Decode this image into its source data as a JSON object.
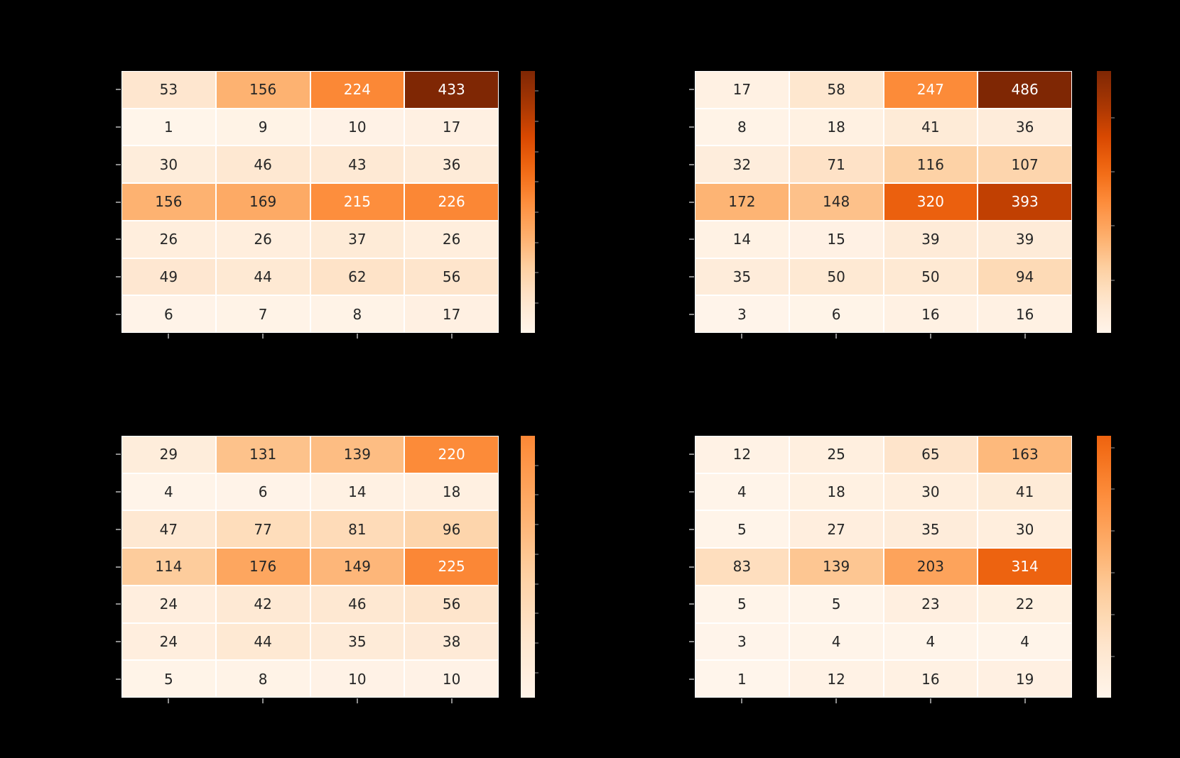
{
  "background": "#000000",
  "colormap": {
    "name": "Oranges",
    "stops": [
      "#fff5eb",
      "#fee6ce",
      "#fdd0a2",
      "#fdae6b",
      "#fd8d3c",
      "#f16913",
      "#d94801",
      "#a63603",
      "#7f2704"
    ]
  },
  "annotation_colors": {
    "dark": "#262626",
    "light": "#ffffff"
  },
  "gridline_color": "#ffffff",
  "axis_tick_color": "#8c8c8c",
  "colorbar_tick_color": "#4d4d4d",
  "white_text_threshold": 0.45,
  "chart_data": [
    {
      "type": "heatmap",
      "panel": "top-left",
      "rows": 7,
      "cols": 4,
      "values": [
        [
          53,
          156,
          224,
          433
        ],
        [
          1,
          9,
          10,
          17
        ],
        [
          30,
          46,
          43,
          36
        ],
        [
          156,
          169,
          215,
          226
        ],
        [
          26,
          26,
          37,
          26
        ],
        [
          49,
          44,
          62,
          56
        ],
        [
          6,
          7,
          8,
          17
        ]
      ],
      "color_vmax": 433,
      "colorbar": {
        "min": 1,
        "max": 433,
        "ticks": [
          50,
          100,
          150,
          200,
          250,
          300,
          350,
          400
        ]
      },
      "grid": true,
      "legend_position": "right"
    },
    {
      "type": "heatmap",
      "panel": "top-right",
      "rows": 7,
      "cols": 4,
      "values": [
        [
          17,
          58,
          247,
          486
        ],
        [
          8,
          18,
          41,
          36
        ],
        [
          32,
          71,
          116,
          107
        ],
        [
          172,
          148,
          320,
          393
        ],
        [
          14,
          15,
          39,
          39
        ],
        [
          35,
          50,
          50,
          94
        ],
        [
          3,
          6,
          16,
          16
        ]
      ],
      "color_vmax": 486,
      "colorbar": {
        "min": 3,
        "max": 486,
        "ticks": [
          100,
          200,
          300,
          400
        ]
      },
      "grid": true,
      "legend_position": "right"
    },
    {
      "type": "heatmap",
      "panel": "bottom-left",
      "rows": 7,
      "cols": 4,
      "values": [
        [
          29,
          131,
          139,
          220
        ],
        [
          4,
          6,
          14,
          18
        ],
        [
          47,
          77,
          81,
          96
        ],
        [
          114,
          176,
          149,
          225
        ],
        [
          24,
          42,
          46,
          56
        ],
        [
          24,
          44,
          35,
          38
        ],
        [
          5,
          8,
          10,
          10
        ]
      ],
      "color_vmax": 433,
      "colorbar": {
        "min": 4,
        "max": 225,
        "ticks": [
          25,
          50,
          75,
          100,
          125,
          150,
          175,
          200
        ]
      },
      "grid": true,
      "legend_position": "right"
    },
    {
      "type": "heatmap",
      "panel": "bottom-right",
      "rows": 7,
      "cols": 4,
      "values": [
        [
          12,
          25,
          65,
          163
        ],
        [
          4,
          18,
          30,
          41
        ],
        [
          5,
          27,
          35,
          30
        ],
        [
          83,
          139,
          203,
          314
        ],
        [
          5,
          5,
          23,
          22
        ],
        [
          3,
          4,
          4,
          4
        ],
        [
          1,
          12,
          16,
          19
        ]
      ],
      "color_vmax": 486,
      "colorbar": {
        "min": 1,
        "max": 314,
        "ticks": [
          50,
          100,
          150,
          200,
          250,
          300
        ]
      },
      "grid": true,
      "legend_position": "right"
    }
  ]
}
